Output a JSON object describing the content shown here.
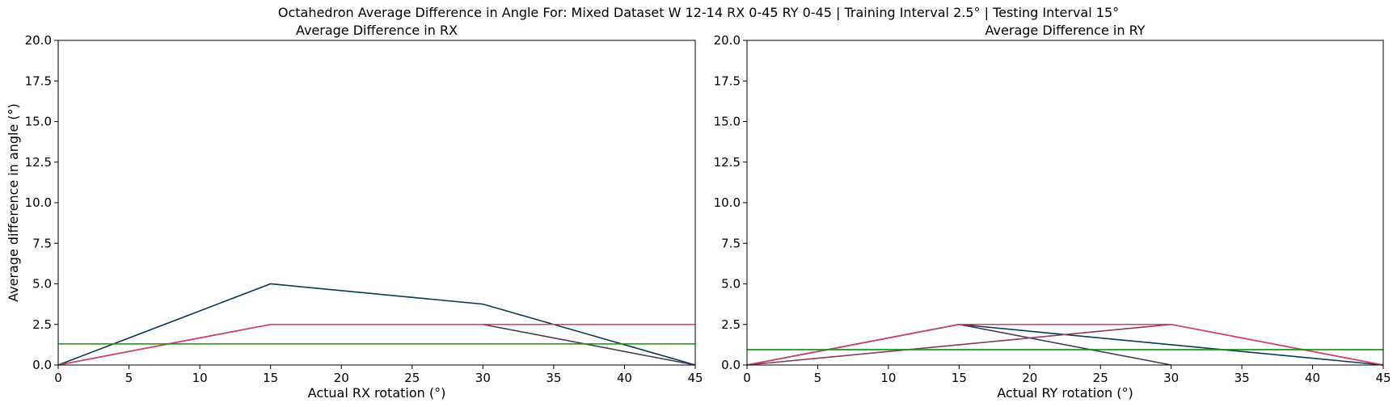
{
  "suptitle": "Octahedron Average Difference in Angle For: Mixed Dataset W 12-14 RX 0-45 RY 0-45 | Training Interval 2.5° | Testing Interval 15°",
  "chart_data": [
    {
      "type": "line",
      "title": "Average Difference in RX",
      "xlabel": "Actual RX rotation (°)",
      "ylabel": "Average difference in angle (°)",
      "xlim": [
        0,
        45
      ],
      "ylim": [
        0,
        20
      ],
      "xticks": [
        "0",
        "5",
        "10",
        "15",
        "20",
        "25",
        "30",
        "35",
        "40",
        "45"
      ],
      "yticks": [
        "0.0",
        "2.5",
        "5.0",
        "7.5",
        "10.0",
        "12.5",
        "15.0",
        "17.5",
        "20.0"
      ],
      "grid": false,
      "series": [
        {
          "color": "#0b3a53",
          "x": [
            0,
            15,
            30,
            45
          ],
          "y": [
            0,
            5.0,
            3.75,
            0
          ]
        },
        {
          "color": "#4a3a5a",
          "x": [
            0,
            15,
            30,
            45
          ],
          "y": [
            0,
            2.5,
            2.5,
            0
          ]
        },
        {
          "color": "#d0406a",
          "x": [
            0,
            15,
            30,
            45
          ],
          "y": [
            0,
            2.5,
            2.5,
            2.5
          ]
        },
        {
          "color": "#1a8a1a",
          "x": [
            0,
            45
          ],
          "y": [
            1.3,
            1.3
          ]
        }
      ]
    },
    {
      "type": "line",
      "title": "Average Difference in RY",
      "xlabel": "Actual RY rotation (°)",
      "ylabel": "",
      "xlim": [
        0,
        45
      ],
      "ylim": [
        0,
        20
      ],
      "xticks": [
        "0",
        "5",
        "10",
        "15",
        "20",
        "25",
        "30",
        "35",
        "40",
        "45"
      ],
      "yticks": [
        "0.0",
        "2.5",
        "5.0",
        "7.5",
        "10.0",
        "12.5",
        "15.0",
        "17.5",
        "20.0"
      ],
      "grid": false,
      "series": [
        {
          "color": "#0b3a53",
          "x": [
            0,
            15,
            45
          ],
          "y": [
            0,
            2.5,
            0
          ]
        },
        {
          "color": "#4a3a5a",
          "x": [
            0,
            15,
            30
          ],
          "y": [
            0,
            2.5,
            0
          ]
        },
        {
          "color": "#8a3a5a",
          "x": [
            0,
            30,
            45
          ],
          "y": [
            0,
            2.5,
            0
          ]
        },
        {
          "color": "#d0406a",
          "x": [
            0,
            15,
            30,
            45
          ],
          "y": [
            0,
            2.5,
            2.5,
            0
          ]
        },
        {
          "color": "#1a8a1a",
          "x": [
            0,
            45
          ],
          "y": [
            0.95,
            0.95
          ]
        }
      ]
    }
  ]
}
